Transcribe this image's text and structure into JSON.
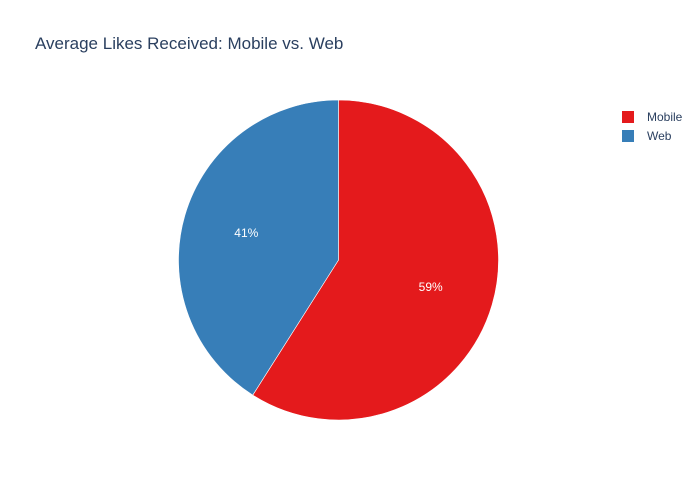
{
  "chart_data": {
    "type": "pie",
    "title": "Average Likes Received: Mobile vs. Web",
    "categories": [
      "Mobile",
      "Web"
    ],
    "values": [
      59,
      41
    ],
    "labels": [
      "59%",
      "41%"
    ],
    "colors": [
      "#e41a1c",
      "#377eb8"
    ],
    "legend_position": "top-right",
    "direction": "clockwise",
    "start": "top"
  }
}
